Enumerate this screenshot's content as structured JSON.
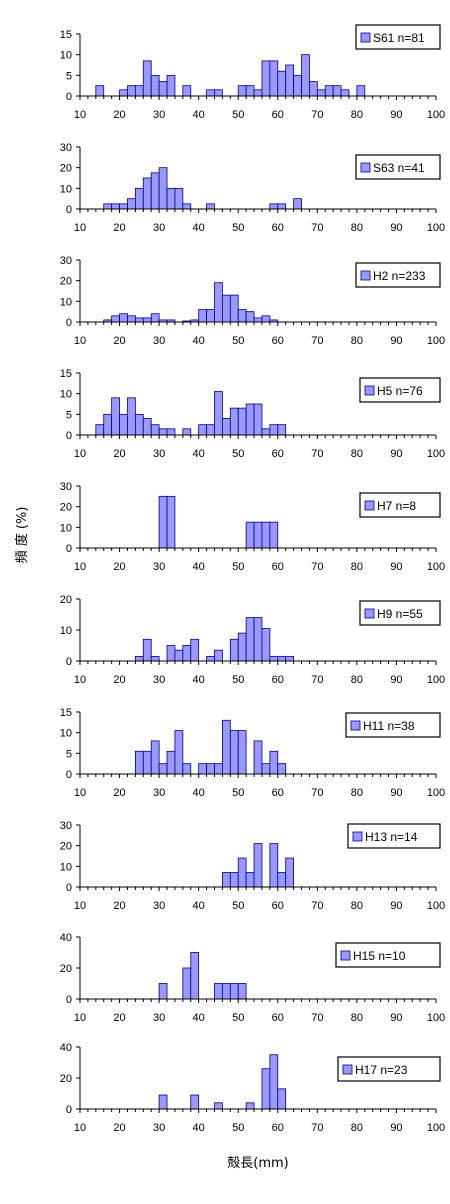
{
  "chart_data": {
    "type": "bar",
    "xlabel": "殻長(mm)",
    "ylabel": "頻 度 (%)",
    "xticks": [
      "10",
      "20",
      "30",
      "40",
      "50",
      "60",
      "70",
      "80",
      "90",
      "100"
    ],
    "bin_width": 2,
    "xlim": [
      10,
      100
    ],
    "bar_color": "#9999ff",
    "panels": [
      {
        "legend": "S61 n=81",
        "ylim": [
          0,
          15
        ],
        "yticks": [
          "0",
          "5",
          "10",
          "15"
        ],
        "bars": [
          [
            14,
            2.5
          ],
          [
            20,
            1.5
          ],
          [
            22,
            2.5
          ],
          [
            24,
            2.5
          ],
          [
            26,
            8.5
          ],
          [
            28,
            5
          ],
          [
            30,
            3.5
          ],
          [
            32,
            5
          ],
          [
            36,
            2.5
          ],
          [
            42,
            1.5
          ],
          [
            44,
            1.5
          ],
          [
            50,
            2.5
          ],
          [
            52,
            2.5
          ],
          [
            54,
            1.5
          ],
          [
            56,
            8.5
          ],
          [
            58,
            8.5
          ],
          [
            60,
            6
          ],
          [
            62,
            7.5
          ],
          [
            64,
            5
          ],
          [
            66,
            10
          ],
          [
            68,
            3.5
          ],
          [
            70,
            1.5
          ],
          [
            72,
            2.5
          ],
          [
            74,
            2.5
          ],
          [
            76,
            1.5
          ],
          [
            80,
            2.5
          ]
        ]
      },
      {
        "legend": "S63 n=41",
        "ylim": [
          0,
          30
        ],
        "yticks": [
          "0",
          "10",
          "20",
          "30"
        ],
        "bars": [
          [
            16,
            2.5
          ],
          [
            18,
            2.5
          ],
          [
            20,
            2.5
          ],
          [
            22,
            5
          ],
          [
            24,
            10
          ],
          [
            26,
            15
          ],
          [
            28,
            17.5
          ],
          [
            30,
            20
          ],
          [
            32,
            10
          ],
          [
            34,
            10
          ],
          [
            36,
            2.5
          ],
          [
            42,
            2.5
          ],
          [
            58,
            2.5
          ],
          [
            60,
            2.5
          ],
          [
            64,
            5
          ]
        ]
      },
      {
        "legend": "H2 n=233",
        "ylim": [
          0,
          30
        ],
        "yticks": [
          "0",
          "10",
          "20",
          "30"
        ],
        "bars": [
          [
            16,
            1
          ],
          [
            18,
            3
          ],
          [
            20,
            4
          ],
          [
            22,
            3
          ],
          [
            24,
            2
          ],
          [
            26,
            2
          ],
          [
            28,
            4
          ],
          [
            30,
            1
          ],
          [
            32,
            1
          ],
          [
            36,
            0.5
          ],
          [
            38,
            1
          ],
          [
            40,
            6
          ],
          [
            42,
            6
          ],
          [
            44,
            19
          ],
          [
            46,
            13
          ],
          [
            48,
            13
          ],
          [
            50,
            6
          ],
          [
            52,
            5
          ],
          [
            54,
            2
          ],
          [
            56,
            3
          ],
          [
            58,
            1
          ]
        ]
      },
      {
        "legend": "H5 n=76",
        "ylim": [
          0,
          15
        ],
        "yticks": [
          "0",
          "5",
          "10",
          "15"
        ],
        "bars": [
          [
            14,
            2.5
          ],
          [
            16,
            5
          ],
          [
            18,
            9
          ],
          [
            20,
            5
          ],
          [
            22,
            9
          ],
          [
            24,
            5
          ],
          [
            26,
            4
          ],
          [
            28,
            2.5
          ],
          [
            30,
            1.5
          ],
          [
            32,
            1.5
          ],
          [
            36,
            1.5
          ],
          [
            40,
            2.5
          ],
          [
            42,
            2.5
          ],
          [
            44,
            10.5
          ],
          [
            46,
            4
          ],
          [
            48,
            6.5
          ],
          [
            50,
            6.5
          ],
          [
            52,
            7.5
          ],
          [
            54,
            7.5
          ],
          [
            56,
            1.5
          ],
          [
            58,
            2.5
          ],
          [
            60,
            2.5
          ]
        ]
      },
      {
        "legend": "H7 n=8",
        "ylim": [
          0,
          30
        ],
        "yticks": [
          "0",
          "10",
          "20",
          "30"
        ],
        "bars": [
          [
            30,
            25
          ],
          [
            32,
            25
          ],
          [
            52,
            12.5
          ],
          [
            54,
            12.5
          ],
          [
            56,
            12.5
          ],
          [
            58,
            12.5
          ]
        ]
      },
      {
        "legend": "H9 n=55",
        "ylim": [
          0,
          20
        ],
        "yticks": [
          "0",
          "10",
          "20"
        ],
        "bars": [
          [
            24,
            1.5
          ],
          [
            26,
            7
          ],
          [
            28,
            1.5
          ],
          [
            32,
            5
          ],
          [
            34,
            3.5
          ],
          [
            36,
            5
          ],
          [
            38,
            7
          ],
          [
            42,
            1.5
          ],
          [
            44,
            3.5
          ],
          [
            48,
            7
          ],
          [
            50,
            9
          ],
          [
            52,
            14
          ],
          [
            54,
            14
          ],
          [
            56,
            10.5
          ],
          [
            58,
            1.5
          ],
          [
            60,
            1.5
          ],
          [
            62,
            1.5
          ]
        ]
      },
      {
        "legend": "H11 n=38",
        "ylim": [
          0,
          15
        ],
        "yticks": [
          "0",
          "5",
          "10",
          "15"
        ],
        "bars": [
          [
            24,
            5.5
          ],
          [
            26,
            5.5
          ],
          [
            28,
            8
          ],
          [
            30,
            2.5
          ],
          [
            32,
            5.5
          ],
          [
            34,
            10.5
          ],
          [
            36,
            2.5
          ],
          [
            40,
            2.5
          ],
          [
            42,
            2.5
          ],
          [
            44,
            2.5
          ],
          [
            46,
            13
          ],
          [
            48,
            10.5
          ],
          [
            50,
            10.5
          ],
          [
            54,
            8
          ],
          [
            56,
            2.5
          ],
          [
            58,
            5.5
          ],
          [
            60,
            2.5
          ]
        ]
      },
      {
        "legend": "H13 n=14",
        "ylim": [
          0,
          30
        ],
        "yticks": [
          "0",
          "10",
          "20",
          "30"
        ],
        "bars": [
          [
            46,
            7
          ],
          [
            48,
            7
          ],
          [
            50,
            14
          ],
          [
            52,
            7
          ],
          [
            54,
            21
          ],
          [
            58,
            21
          ],
          [
            60,
            7
          ],
          [
            62,
            14
          ]
        ]
      },
      {
        "legend": "H15 n=10",
        "ylim": [
          0,
          40
        ],
        "yticks": [
          "0",
          "20",
          "40"
        ],
        "bars": [
          [
            30,
            10
          ],
          [
            36,
            20
          ],
          [
            38,
            30
          ],
          [
            44,
            10
          ],
          [
            46,
            10
          ],
          [
            48,
            10
          ],
          [
            50,
            10
          ]
        ]
      },
      {
        "legend": "H17  n=23",
        "ylim": [
          0,
          40
        ],
        "yticks": [
          "0",
          "20",
          "40"
        ],
        "bars": [
          [
            30,
            9
          ],
          [
            38,
            9
          ],
          [
            44,
            4
          ],
          [
            52,
            4
          ],
          [
            56,
            26
          ],
          [
            58,
            35
          ],
          [
            60,
            13
          ]
        ]
      }
    ]
  }
}
